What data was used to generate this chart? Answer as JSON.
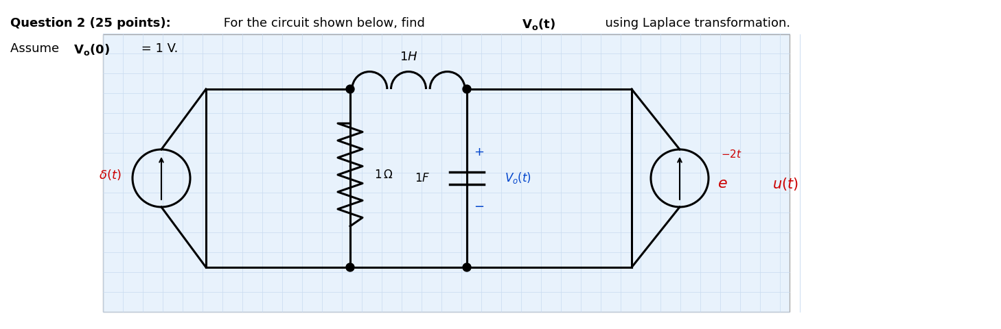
{
  "bg_color": "#ffffff",
  "grid_color": "#c8daf0",
  "fig_width": 14.58,
  "fig_height": 4.8,
  "title_text": "Question 2 (25 points):",
  "title_rest": " For the circuit shown below, find ",
  "title_vo": "V",
  "title_o": "o",
  "title_t": "(t)",
  "title_rest2": "  using Laplace transformation.",
  "line2_bold": "V",
  "line2_o2": "o",
  "line2_rest": "(0)",
  "line2_eq": " = 1 V.",
  "circuit_bg": "#ddeeff",
  "circuit_border": "#aaaaaa",
  "delta_color": "#cc0000",
  "vo_color": "#0044cc",
  "exp_color": "#cc0000"
}
